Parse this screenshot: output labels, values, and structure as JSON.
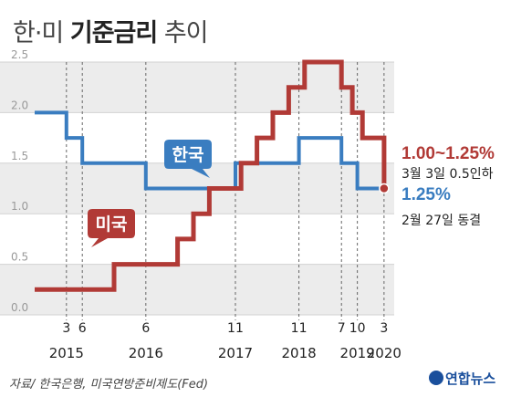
{
  "title": {
    "part1": "한·미",
    "part2": "기준금리",
    "part3": "추이"
  },
  "source": "자료/ 한국은행, 미국연방준비제도(Fed)",
  "logo": "연합뉴스",
  "colors": {
    "korea": "#3a7dc0",
    "us": "#b13a36",
    "band": "#ececec"
  },
  "chart_data": {
    "type": "line",
    "ylim": [
      0,
      2.5
    ],
    "yticks": [
      "0.0",
      "0.5",
      "1.0",
      "1.5",
      "2.0",
      "2.5"
    ],
    "xlim": [
      2014.67,
      2020.33
    ],
    "xticks": [
      {
        "month": "3",
        "year": "2015",
        "x": 2015.17
      },
      {
        "month": "6",
        "year": "",
        "x": 2015.42
      },
      {
        "month": "6",
        "year": "2016",
        "x": 2016.42
      },
      {
        "month": "11",
        "year": "2017",
        "x": 2017.83
      },
      {
        "month": "11",
        "year": "2018",
        "x": 2018.83
      },
      {
        "month": "7",
        "year": "",
        "x": 2019.5
      },
      {
        "month": "10",
        "year": "2019",
        "x": 2019.75
      },
      {
        "month": "3",
        "year": "2020",
        "x": 2020.17
      }
    ],
    "series": [
      {
        "name": "한국",
        "color": "#3a7dc0",
        "points": [
          [
            2014.67,
            2.0
          ],
          [
            2015.17,
            2.0
          ],
          [
            2015.17,
            1.75
          ],
          [
            2015.42,
            1.75
          ],
          [
            2015.42,
            1.5
          ],
          [
            2016.42,
            1.5
          ],
          [
            2016.42,
            1.25
          ],
          [
            2017.83,
            1.25
          ],
          [
            2017.83,
            1.5
          ],
          [
            2018.83,
            1.5
          ],
          [
            2018.83,
            1.75
          ],
          [
            2019.5,
            1.75
          ],
          [
            2019.5,
            1.5
          ],
          [
            2019.75,
            1.5
          ],
          [
            2019.75,
            1.25
          ],
          [
            2020.17,
            1.25
          ]
        ]
      },
      {
        "name": "미국",
        "color": "#b13a36",
        "points": [
          [
            2014.67,
            0.25
          ],
          [
            2015.92,
            0.25
          ],
          [
            2015.92,
            0.5
          ],
          [
            2016.92,
            0.5
          ],
          [
            2016.92,
            0.75
          ],
          [
            2017.17,
            0.75
          ],
          [
            2017.17,
            1.0
          ],
          [
            2017.42,
            1.0
          ],
          [
            2017.42,
            1.25
          ],
          [
            2017.92,
            1.25
          ],
          [
            2017.92,
            1.5
          ],
          [
            2018.17,
            1.5
          ],
          [
            2018.17,
            1.75
          ],
          [
            2018.42,
            1.75
          ],
          [
            2018.42,
            2.0
          ],
          [
            2018.67,
            2.0
          ],
          [
            2018.67,
            2.25
          ],
          [
            2018.92,
            2.25
          ],
          [
            2018.92,
            2.5
          ],
          [
            2019.5,
            2.5
          ],
          [
            2019.5,
            2.25
          ],
          [
            2019.67,
            2.25
          ],
          [
            2019.67,
            2.0
          ],
          [
            2019.83,
            2.0
          ],
          [
            2019.83,
            1.75
          ],
          [
            2020.17,
            1.75
          ],
          [
            2020.17,
            1.25
          ]
        ]
      }
    ],
    "annotations": {
      "us_value": "1.00~1.25%",
      "us_note": "3월 3일 0.5인하",
      "kr_value": "1.25%",
      "kr_note": "2월 27일 동결"
    }
  }
}
